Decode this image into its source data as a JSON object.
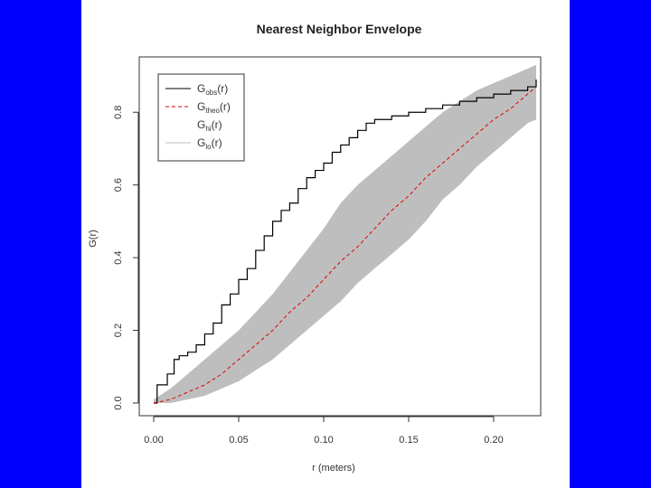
{
  "chart_data": {
    "type": "line",
    "title": "Nearest Neighbor Envelope",
    "xlabel": "r (meters)",
    "ylabel": "G(r)",
    "xlim": [
      0,
      0.225
    ],
    "ylim": [
      0,
      0.9
    ],
    "xticks": [
      "0.00",
      "0.05",
      "0.10",
      "0.15",
      "0.20"
    ],
    "yticks": [
      "0.0",
      "0.2",
      "0.4",
      "0.6",
      "0.8"
    ],
    "grid": false,
    "legend_position": "top-left",
    "series": [
      {
        "name": "G_obs(r)",
        "base": "G",
        "sub": "obs",
        "color": "#000000",
        "style": "step",
        "x": [
          0,
          0.002,
          0.008,
          0.012,
          0.015,
          0.02,
          0.025,
          0.03,
          0.035,
          0.04,
          0.045,
          0.05,
          0.055,
          0.06,
          0.065,
          0.07,
          0.075,
          0.08,
          0.085,
          0.09,
          0.095,
          0.1,
          0.105,
          0.11,
          0.115,
          0.12,
          0.125,
          0.13,
          0.14,
          0.15,
          0.16,
          0.17,
          0.18,
          0.19,
          0.2,
          0.21,
          0.22,
          0.225
        ],
        "y": [
          0,
          0.05,
          0.08,
          0.12,
          0.13,
          0.14,
          0.16,
          0.19,
          0.22,
          0.27,
          0.3,
          0.34,
          0.37,
          0.42,
          0.46,
          0.5,
          0.53,
          0.55,
          0.59,
          0.62,
          0.64,
          0.66,
          0.69,
          0.71,
          0.73,
          0.75,
          0.77,
          0.78,
          0.79,
          0.8,
          0.81,
          0.82,
          0.83,
          0.84,
          0.85,
          0.86,
          0.87,
          0.89
        ]
      },
      {
        "name": "G_theo(r)",
        "base": "G",
        "sub": "theo",
        "color": "#e00000",
        "style": "dashed",
        "x": [
          0,
          0.01,
          0.02,
          0.03,
          0.04,
          0.05,
          0.06,
          0.07,
          0.08,
          0.09,
          0.1,
          0.11,
          0.12,
          0.13,
          0.14,
          0.15,
          0.16,
          0.17,
          0.18,
          0.19,
          0.2,
          0.21,
          0.22,
          0.225
        ],
        "y": [
          0,
          0.01,
          0.03,
          0.05,
          0.08,
          0.12,
          0.16,
          0.2,
          0.25,
          0.29,
          0.34,
          0.39,
          0.43,
          0.48,
          0.53,
          0.57,
          0.62,
          0.66,
          0.7,
          0.74,
          0.78,
          0.81,
          0.85,
          0.87
        ]
      },
      {
        "name": "G_hi(r)",
        "base": "G",
        "sub": "hi",
        "color": "#bebebe",
        "style": "band-upper",
        "x": [
          0,
          0.01,
          0.02,
          0.03,
          0.04,
          0.05,
          0.06,
          0.07,
          0.08,
          0.09,
          0.1,
          0.11,
          0.12,
          0.13,
          0.14,
          0.15,
          0.16,
          0.17,
          0.18,
          0.19,
          0.2,
          0.21,
          0.22,
          0.225
        ],
        "y": [
          0.01,
          0.04,
          0.08,
          0.12,
          0.16,
          0.2,
          0.25,
          0.3,
          0.36,
          0.42,
          0.48,
          0.55,
          0.6,
          0.64,
          0.68,
          0.72,
          0.76,
          0.8,
          0.83,
          0.86,
          0.88,
          0.9,
          0.92,
          0.93
        ]
      },
      {
        "name": "G_lo(r)",
        "base": "G",
        "sub": "lo",
        "color": "#bebebe",
        "style": "band-lower",
        "x": [
          0,
          0.01,
          0.02,
          0.03,
          0.04,
          0.05,
          0.06,
          0.07,
          0.08,
          0.09,
          0.1,
          0.11,
          0.12,
          0.13,
          0.14,
          0.15,
          0.16,
          0.17,
          0.18,
          0.19,
          0.2,
          0.21,
          0.22,
          0.225
        ],
        "y": [
          0,
          0,
          0.01,
          0.02,
          0.04,
          0.06,
          0.09,
          0.12,
          0.16,
          0.2,
          0.24,
          0.28,
          0.33,
          0.37,
          0.41,
          0.45,
          0.5,
          0.56,
          0.6,
          0.65,
          0.69,
          0.73,
          0.77,
          0.78
        ]
      }
    ]
  }
}
